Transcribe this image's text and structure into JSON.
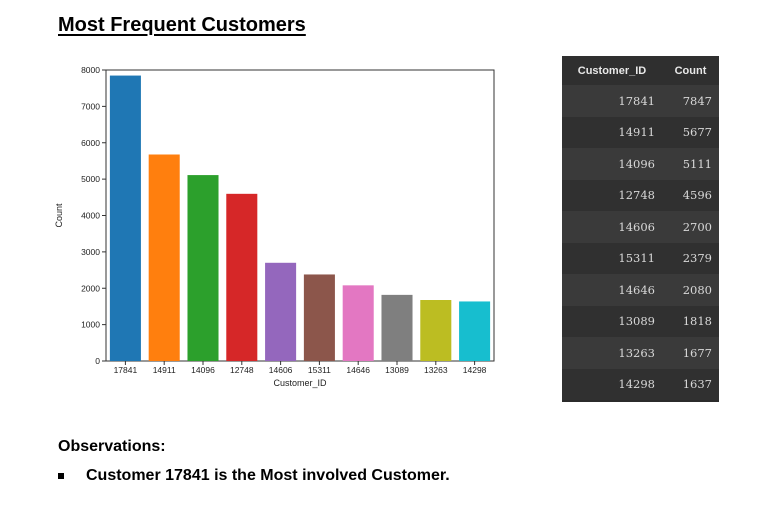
{
  "page": {
    "title": "Most Frequent Customers"
  },
  "chart_data": {
    "type": "bar",
    "categories": [
      "17841",
      "14911",
      "14096",
      "12748",
      "14606",
      "15311",
      "14646",
      "13089",
      "13263",
      "14298"
    ],
    "values": [
      7847,
      5677,
      5111,
      4596,
      2700,
      2379,
      2080,
      1818,
      1677,
      1637
    ],
    "colors": [
      "#1f77b4",
      "#ff7f0e",
      "#2ca02c",
      "#d62728",
      "#9467bd",
      "#8c564b",
      "#e377c2",
      "#7f7f7f",
      "#bcbd22",
      "#17becf"
    ],
    "xlabel": "Customer_ID",
    "ylabel": "Count",
    "ylim": [
      0,
      8000
    ],
    "yticks": [
      0,
      1000,
      2000,
      3000,
      4000,
      5000,
      6000,
      7000,
      8000
    ],
    "grid": false,
    "legend": "none"
  },
  "table": {
    "headers": [
      "Customer_ID",
      "Count"
    ],
    "rows": [
      [
        "17841",
        "7847"
      ],
      [
        "14911",
        "5677"
      ],
      [
        "14096",
        "5111"
      ],
      [
        "12748",
        "4596"
      ],
      [
        "14606",
        "2700"
      ],
      [
        "15311",
        "2379"
      ],
      [
        "14646",
        "2080"
      ],
      [
        "13089",
        "1818"
      ],
      [
        "13263",
        "1677"
      ],
      [
        "14298",
        "1637"
      ]
    ]
  },
  "observations": {
    "title": "Observations:",
    "items": [
      "Customer 17841 is the Most involved Customer."
    ]
  }
}
